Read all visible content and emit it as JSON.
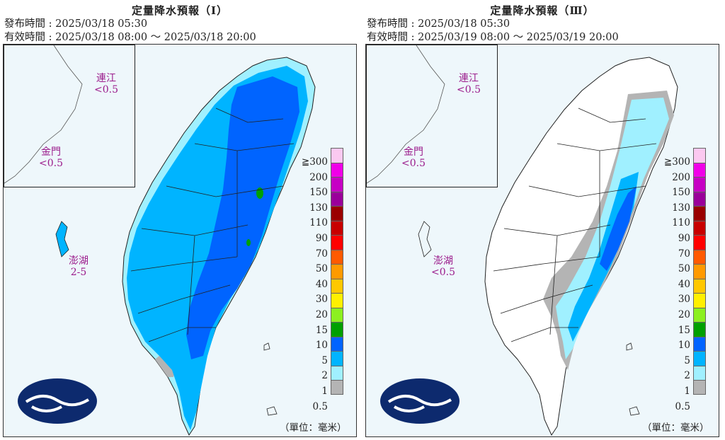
{
  "panels": [
    {
      "title": "定量降水預報（Ⅰ）",
      "issue": "發布時間 : 2025/03/18 05:30",
      "valid": "有效時間 : 2025/03/18 08:00 ～ 2025/03/18 20:00",
      "matsu": {
        "name": "連江",
        "value": "<0.5"
      },
      "kinmen": {
        "name": "金門",
        "value": "<0.5"
      },
      "penghu": {
        "name": "澎湖",
        "value": "2-5"
      }
    },
    {
      "title": "定量降水預報（Ⅲ）",
      "issue": "發布時間 : 2025/03/18 05:30",
      "valid": "有效時間 : 2025/03/19 08:00 ～ 2025/03/19 20:00",
      "matsu": {
        "name": "連江",
        "value": "<0.5"
      },
      "kinmen": {
        "name": "金門",
        "value": "<0.5"
      },
      "penghu": {
        "name": "澎湖",
        "value": "<0.5"
      }
    }
  ],
  "legend": {
    "labels": [
      "≧300",
      "200",
      "150",
      "130",
      "110",
      "90",
      "70",
      "50",
      "40",
      "30",
      "20",
      "15",
      "10",
      "5",
      "2",
      "1",
      "0.5"
    ],
    "colors": [
      "#fbc9f0",
      "#f000e8",
      "#c600c4",
      "#9a009a",
      "#9a0000",
      "#c80000",
      "#ff0000",
      "#ff5a00",
      "#ff9a00",
      "#ffc800",
      "#fff000",
      "#8cf020",
      "#00a000",
      "#0064ff",
      "#00b4ff",
      "#a0f0ff",
      "#b4b4b4"
    ],
    "unit": "（單位：毫米）"
  },
  "colors": {
    "gray": "#b4b4b4",
    "lightcyan": "#a0f0ff",
    "cyan": "#00b4ff",
    "blue": "#0064ff",
    "green": "#00a000",
    "ocean": "#eef7fb"
  }
}
